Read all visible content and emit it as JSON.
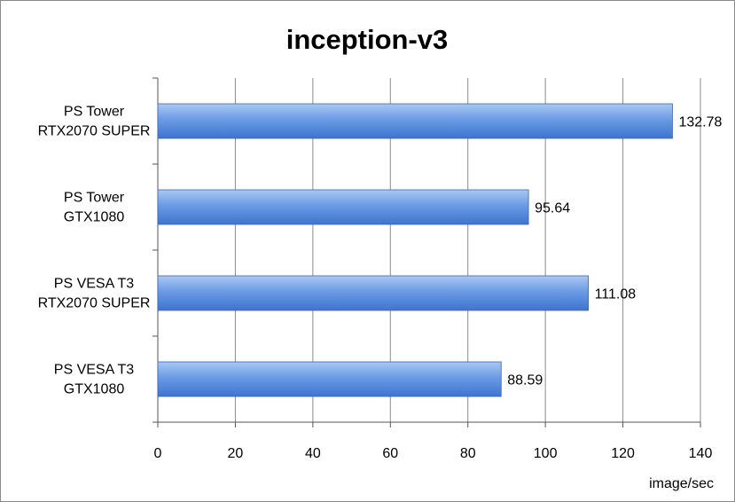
{
  "chart_data": {
    "type": "bar",
    "orientation": "horizontal",
    "title": "inception-v3",
    "xlabel": "image/sec",
    "ylabel": "",
    "categories": [
      [
        "PS Tower",
        "RTX2070 SUPER"
      ],
      [
        "PS Tower",
        "GTX1080"
      ],
      [
        "PS VESA T3",
        "RTX2070 SUPER"
      ],
      [
        "PS VESA T3",
        "GTX1080"
      ]
    ],
    "values": [
      132.78,
      95.64,
      111.08,
      88.59
    ],
    "value_labels": [
      "132.78",
      "95.64",
      "111.08",
      "88.59"
    ],
    "xlim": [
      0,
      140
    ],
    "xticks": [
      0,
      20,
      40,
      60,
      80,
      100,
      120,
      140
    ],
    "grid": true,
    "legend": "none",
    "colors": {
      "bar_top": "#a9c8f2",
      "bar_mid": "#6b9be4",
      "bar_bottom": "#3f74d0",
      "bar_stroke": "#3a64b0",
      "grid": "#8c8c8c",
      "axis": "#555555"
    }
  }
}
